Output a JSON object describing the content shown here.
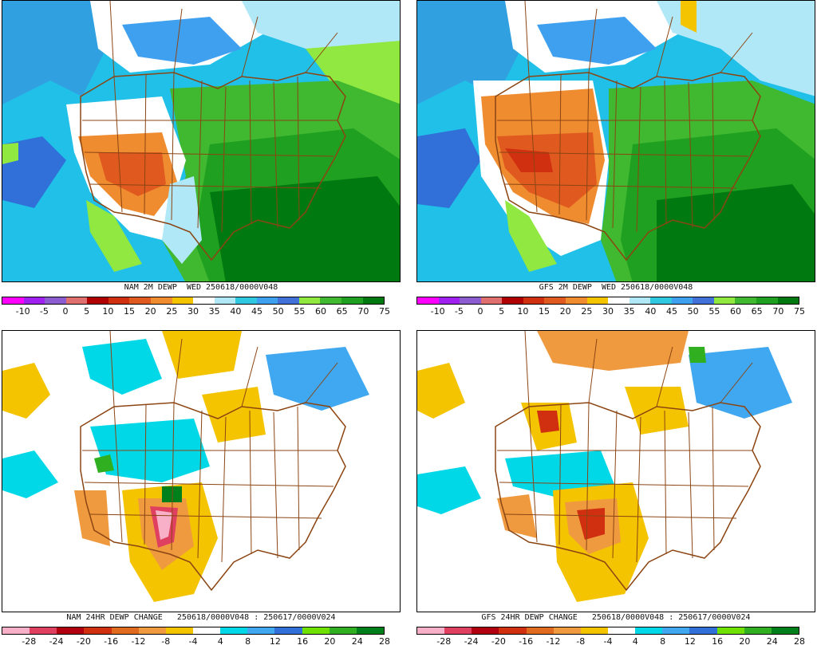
{
  "panels": {
    "nam_dewp": {
      "caption": "NAM 2M DEWP  WED 250618/0000V048",
      "ticks": [
        "-10",
        "-5",
        "0",
        "5",
        "10",
        "15",
        "20",
        "25",
        "30",
        "35",
        "40",
        "45",
        "50",
        "55",
        "60",
        "65",
        "70",
        "75"
      ]
    },
    "gfs_dewp": {
      "caption": "GFS 2M DEWP  WED 250618/0000V048",
      "ticks": [
        "-10",
        "-5",
        "0",
        "5",
        "10",
        "15",
        "20",
        "25",
        "30",
        "35",
        "40",
        "45",
        "50",
        "55",
        "60",
        "65",
        "70",
        "75"
      ]
    },
    "nam_change": {
      "caption": "NAM 24HR DEWP CHANGE   250618/0000V048 : 250617/0000V024",
      "ticks": [
        "-28",
        "-24",
        "-20",
        "-16",
        "-12",
        "-8",
        "-4",
        "4",
        "8",
        "12",
        "16",
        "20",
        "24",
        "28"
      ]
    },
    "gfs_change": {
      "caption": "GFS 24HR DEWP CHANGE   250618/0000V048 : 250617/0000V024",
      "ticks": [
        "-28",
        "-24",
        "-20",
        "-16",
        "-12",
        "-8",
        "-4",
        "4",
        "8",
        "12",
        "16",
        "20",
        "24",
        "28"
      ]
    }
  },
  "colors": {
    "dewp_scale": [
      "#ff00ff",
      "#a020f0",
      "#8a5cd0",
      "#e07070",
      "#b00000",
      "#d03010",
      "#e05a20",
      "#f08c30",
      "#f4c400",
      "#ffffff",
      "#b0e8f8",
      "#30c8e0",
      "#40a0f0",
      "#4070d8",
      "#90e840",
      "#40b830",
      "#20a020",
      "#007a10"
    ],
    "change_scale": [
      "#f8b0c8",
      "#e04060",
      "#b00010",
      "#d03010",
      "#e06a20",
      "#f09a40",
      "#f4c400",
      "#ffffff",
      "#00d8e8",
      "#40a8f0",
      "#3070d8",
      "#70e000",
      "#30b020",
      "#00801a"
    ],
    "ocean_dewp": "#00b8e8",
    "boundary": "#8b4513"
  }
}
